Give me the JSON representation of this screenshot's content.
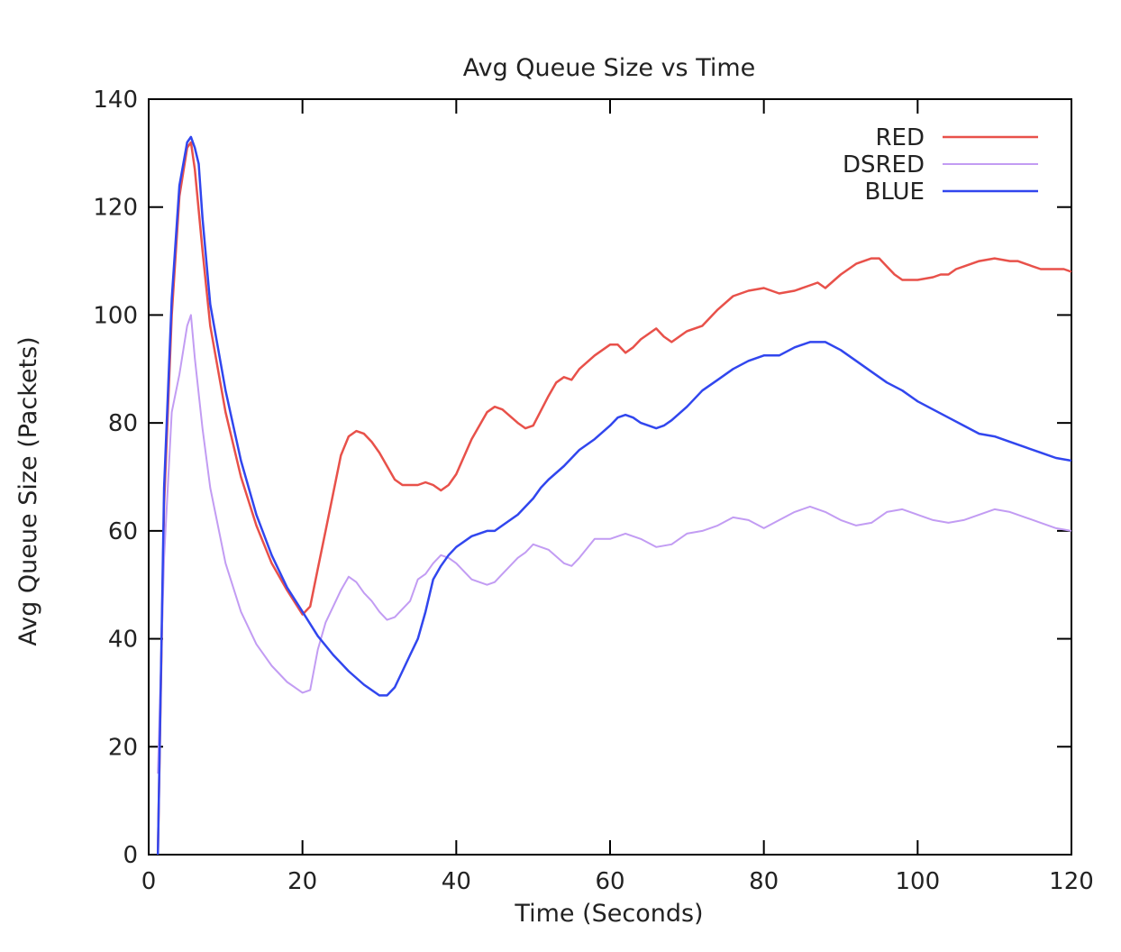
{
  "chart_data": {
    "type": "line",
    "title": "Avg Queue Size vs Time",
    "xlabel": "Time (Seconds)",
    "ylabel": "Avg Queue Size (Packets)",
    "xlim": [
      0,
      120
    ],
    "ylim": [
      0,
      140
    ],
    "xticks": [
      0,
      20,
      40,
      60,
      80,
      100,
      120
    ],
    "yticks": [
      0,
      20,
      40,
      60,
      80,
      100,
      120,
      140
    ],
    "grid": false,
    "legend_position": "top-right",
    "series": [
      {
        "name": "RED",
        "color": "#e8514a",
        "x": [
          1.2,
          2,
          3,
          4,
          5,
          5.5,
          6,
          7,
          8,
          10,
          12,
          14,
          16,
          18,
          20,
          21,
          22,
          23,
          24,
          25,
          26,
          27,
          28,
          29,
          30,
          31,
          32,
          33,
          34,
          35,
          36,
          37,
          38,
          39,
          40,
          42,
          44,
          45,
          46,
          48,
          49,
          50,
          52,
          53,
          54,
          55,
          56,
          58,
          60,
          61,
          62,
          63,
          64,
          65,
          66,
          67,
          68,
          69,
          70,
          72,
          74,
          76,
          78,
          80,
          81,
          82,
          84,
          86,
          87,
          88,
          90,
          92,
          94,
          95,
          96,
          97,
          98,
          100,
          102,
          103,
          104,
          105,
          106,
          108,
          110,
          112,
          113,
          114,
          116,
          118,
          119,
          120
        ],
        "y": [
          0,
          65,
          100,
          122,
          131,
          132,
          127,
          112,
          98,
          82,
          70,
          61,
          54,
          49,
          44.5,
          46,
          53,
          60,
          67,
          74,
          77.5,
          78.5,
          78,
          76.5,
          74.5,
          72,
          69.5,
          68.5,
          68.5,
          68.5,
          69,
          68.5,
          67.5,
          68.5,
          70.5,
          77,
          82,
          83,
          82.5,
          80,
          79,
          79.5,
          85,
          87.5,
          88.5,
          88,
          90,
          92.5,
          94.5,
          94.5,
          93,
          94,
          95.5,
          96.5,
          97.5,
          96,
          95,
          96,
          97,
          98,
          101,
          103.5,
          104.5,
          105,
          104.5,
          104,
          104.5,
          105.5,
          106,
          105,
          107.5,
          109.5,
          110.5,
          110.5,
          109,
          107.5,
          106.5,
          106.5,
          107,
          107.5,
          107.5,
          108.5,
          109,
          110,
          110.5,
          110,
          110,
          109.5,
          108.5,
          108.5,
          108.5,
          108
        ]
      },
      {
        "name": "DSRED",
        "color": "#c29cf3",
        "x": [
          1.2,
          2,
          3,
          4,
          5,
          5.5,
          6,
          7,
          8,
          10,
          12,
          14,
          16,
          18,
          20,
          21,
          22,
          23,
          24,
          25,
          26,
          27,
          28,
          29,
          30,
          31,
          32,
          33,
          34,
          35,
          36,
          37,
          38,
          39,
          40,
          42,
          44,
          45,
          46,
          48,
          49,
          50,
          52,
          54,
          55,
          56,
          58,
          60,
          62,
          64,
          66,
          68,
          70,
          72,
          74,
          76,
          78,
          80,
          82,
          84,
          86,
          88,
          90,
          92,
          94,
          96,
          98,
          100,
          102,
          104,
          106,
          108,
          110,
          112,
          114,
          116,
          118,
          120
        ],
        "y": [
          15,
          55,
          82,
          89,
          98,
          100,
          92,
          79,
          68,
          54,
          45,
          39,
          35,
          32,
          30,
          30.5,
          38,
          43,
          46,
          49,
          51.5,
          50.5,
          48.5,
          47,
          45,
          43.5,
          44,
          45.5,
          47,
          51,
          52,
          54,
          55.5,
          55,
          54,
          51,
          50,
          50.5,
          52,
          55,
          56,
          57.5,
          56.5,
          54,
          53.5,
          55,
          58.5,
          58.5,
          59.5,
          58.5,
          57,
          57.5,
          59.5,
          60,
          61,
          62.5,
          62,
          60.5,
          62,
          63.5,
          64.5,
          63.5,
          62,
          61,
          61.5,
          63.5,
          64,
          63,
          62,
          61.5,
          62,
          63,
          64,
          63.5,
          62.5,
          61.5,
          60.5,
          60
        ]
      },
      {
        "name": "BLUE",
        "color": "#3146ee",
        "x": [
          1.2,
          2,
          3,
          4,
          5,
          5.5,
          6,
          6.5,
          7,
          8,
          10,
          12,
          14,
          16,
          18,
          20,
          22,
          24,
          26,
          28,
          30,
          31,
          32,
          33,
          34,
          35,
          36,
          37,
          38,
          39,
          40,
          42,
          44,
          45,
          46,
          48,
          50,
          51,
          52,
          54,
          56,
          58,
          60,
          61,
          62,
          63,
          64,
          65,
          66,
          67,
          68,
          70,
          72,
          74,
          76,
          78,
          80,
          82,
          84,
          86,
          88,
          90,
          92,
          94,
          96,
          98,
          100,
          102,
          104,
          106,
          108,
          110,
          112,
          114,
          116,
          118,
          120
        ],
        "y": [
          0,
          68,
          103,
          124,
          132,
          133,
          131,
          128,
          118,
          102,
          86,
          73,
          63,
          55.5,
          49.5,
          45,
          40.5,
          37,
          34,
          31.5,
          29.5,
          29.5,
          31,
          34,
          37,
          40,
          45,
          51,
          53.5,
          55.5,
          57,
          59,
          60,
          60,
          61,
          63,
          66,
          68,
          69.5,
          72,
          75,
          77,
          79.5,
          81,
          81.5,
          81,
          80,
          79.5,
          79,
          79.5,
          80.5,
          83,
          86,
          88,
          90,
          91.5,
          92.5,
          92.5,
          94,
          95,
          95,
          93.5,
          91.5,
          89.5,
          87.5,
          86,
          84,
          82.5,
          81,
          79.5,
          78,
          77.5,
          76.5,
          75.5,
          74.5,
          73.5,
          73
        ]
      }
    ]
  }
}
